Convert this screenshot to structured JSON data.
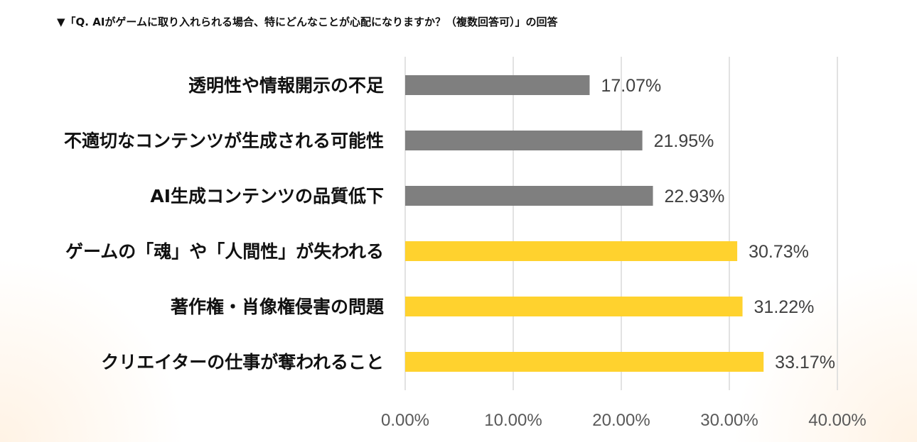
{
  "title": "▼「Q. AIがゲームに取り入れられる場合、特にどんなことが心配になりますか？（複数回答可）」の回答",
  "chart_data": {
    "type": "bar",
    "orientation": "horizontal",
    "title": "▼「Q. AIがゲームに取り入れられる場合、特にどんなことが心配になりますか？（複数回答可）」の回答",
    "categories": [
      "透明性や情報開示の不足",
      "不適切なコンテンツが生成される可能性",
      "AI生成コンテンツの品質低下",
      "ゲームの「魂」や「人間性」が失われる",
      "著作権・肖像権侵害の問題",
      "クリエイターの仕事が奪われること"
    ],
    "values": [
      17.07,
      21.95,
      22.93,
      30.73,
      31.22,
      33.17
    ],
    "data_labels": [
      "17.07%",
      "21.95%",
      "22.93%",
      "30.73%",
      "31.22%",
      "33.17%"
    ],
    "bar_colors": [
      "#7f7f7f",
      "#7f7f7f",
      "#7f7f7f",
      "#ffd22e",
      "#ffd22e",
      "#ffd22e"
    ],
    "xlim": [
      0,
      40
    ],
    "x_ticks": [
      "0.00%",
      "10.00%",
      "20.00%",
      "30.00%",
      "40.00%"
    ],
    "grid": true,
    "xlabel": "",
    "ylabel": ""
  }
}
